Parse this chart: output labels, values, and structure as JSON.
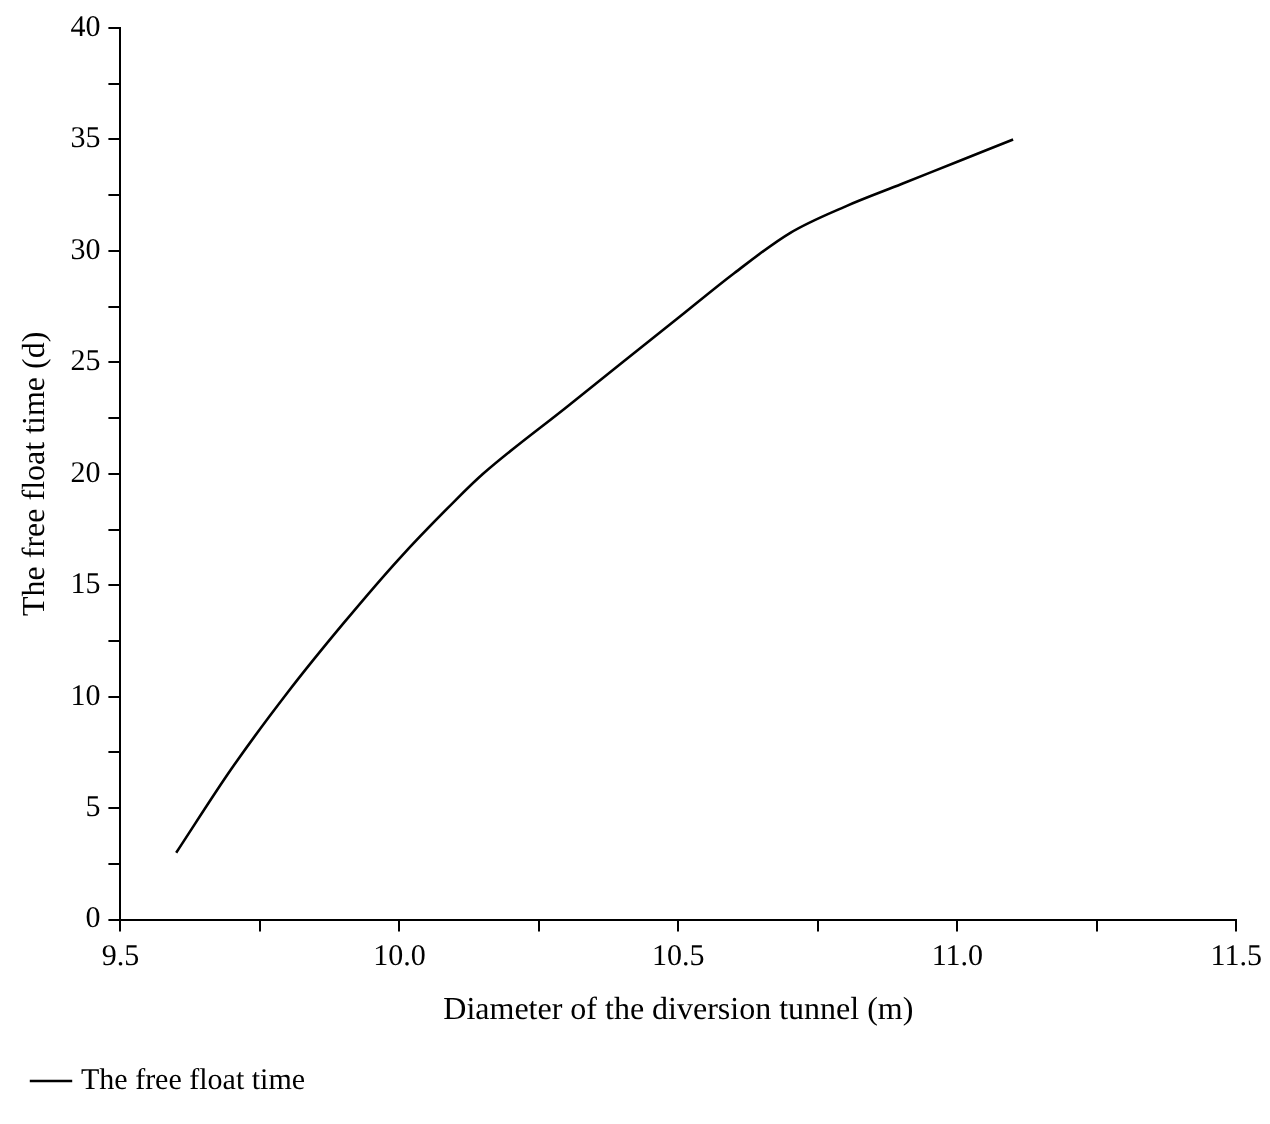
{
  "chart_data": {
    "type": "line",
    "xlabel": "Diameter of the diversion tunnel (m)",
    "ylabel": "The free float time (d)",
    "x": [
      9.6,
      9.7,
      9.8,
      9.9,
      10.0,
      10.1,
      10.15,
      10.3,
      10.5,
      10.6,
      10.7,
      10.8,
      10.9,
      11.0,
      11.1
    ],
    "series": [
      {
        "name": "The free float time",
        "color": "#000000",
        "values": [
          3,
          6.8,
          10.2,
          13.3,
          16.2,
          18.8,
          20,
          23,
          27,
          29,
          30.8,
          32,
          33,
          34,
          35
        ]
      }
    ],
    "xlim": [
      9.5,
      11.5
    ],
    "xticks": [
      9.5,
      {
        "value": 9.75,
        "label": null
      },
      {
        "value": 10,
        "label": "10.0"
      },
      {
        "value": 10.25,
        "label": null
      },
      10.5,
      {
        "value": 10.75,
        "label": null
      },
      {
        "value": 11,
        "label": "11.0"
      },
      {
        "value": 11.25,
        "label": null
      },
      11.5
    ],
    "ylim": [
      0,
      40
    ],
    "yticks": [
      0,
      {
        "value": 2.5,
        "label": null
      },
      5,
      {
        "value": 7.5,
        "label": null
      },
      10,
      {
        "value": 12.5,
        "label": null
      },
      15,
      {
        "value": 17.5,
        "label": null
      },
      20,
      {
        "value": 22.5,
        "label": null
      },
      25,
      {
        "value": 27.5,
        "label": null
      },
      30,
      {
        "value": 32.5,
        "label": null
      },
      35,
      {
        "value": 37.5,
        "label": null
      },
      40
    ],
    "grid": false,
    "legend": "bottom left",
    "marker": "none",
    "line_style": "solid"
  }
}
